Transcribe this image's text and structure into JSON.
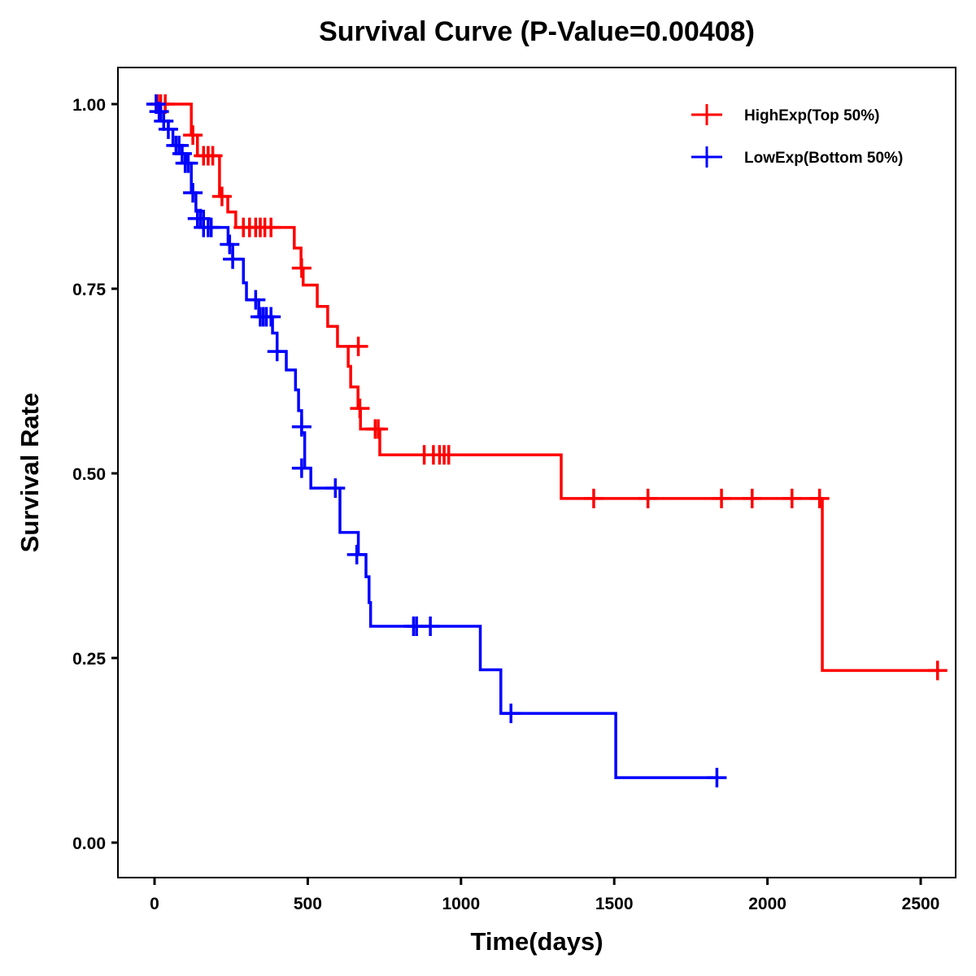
{
  "chart_data": {
    "type": "line",
    "title": "Survival Curve (P-Value=0.00408)",
    "xlabel": "Time(days)",
    "ylabel": "Survival Rate",
    "xlim": [
      -110,
      2630
    ],
    "ylim": [
      -0.05,
      1.05
    ],
    "xticks": [
      0,
      500,
      1000,
      1500,
      2000,
      2500
    ],
    "xtick_labels": [
      "0",
      "500",
      "1000",
      "1500",
      "2000",
      "2500"
    ],
    "yticks": [
      0,
      0.25,
      0.5,
      0.75,
      1.0
    ],
    "ytick_labels": [
      "0.00",
      "0.25",
      "0.50",
      "0.75",
      "1.00"
    ],
    "grid": false,
    "legend_position": "top-right",
    "series": [
      {
        "name": "HighExp(Top 50%)",
        "color": "#ff0000",
        "steps": [
          [
            0,
            1.0
          ],
          [
            120,
            0.958
          ],
          [
            140,
            0.93
          ],
          [
            212,
            0.875
          ],
          [
            239,
            0.854
          ],
          [
            265,
            0.833
          ],
          [
            456,
            0.805
          ],
          [
            478,
            0.778
          ],
          [
            485,
            0.755
          ],
          [
            531,
            0.726
          ],
          [
            565,
            0.699
          ],
          [
            597,
            0.672
          ],
          [
            632,
            0.645
          ],
          [
            640,
            0.617
          ],
          [
            664,
            0.588
          ],
          [
            672,
            0.56
          ],
          [
            735,
            0.525
          ],
          [
            1327,
            0.466
          ],
          [
            2179,
            0.233
          ],
          [
            2560,
            0.233
          ]
        ],
        "censored": [
          [
            10,
            1.0
          ],
          [
            20,
            1.0
          ],
          [
            35,
            1.0
          ],
          [
            125,
            0.958
          ],
          [
            160,
            0.93
          ],
          [
            175,
            0.93
          ],
          [
            190,
            0.93
          ],
          [
            220,
            0.875
          ],
          [
            290,
            0.833
          ],
          [
            310,
            0.833
          ],
          [
            330,
            0.833
          ],
          [
            345,
            0.833
          ],
          [
            360,
            0.833
          ],
          [
            380,
            0.833
          ],
          [
            480,
            0.778
          ],
          [
            665,
            0.672
          ],
          [
            670,
            0.588
          ],
          [
            720,
            0.56
          ],
          [
            730,
            0.56
          ],
          [
            880,
            0.525
          ],
          [
            910,
            0.525
          ],
          [
            930,
            0.525
          ],
          [
            945,
            0.525
          ],
          [
            960,
            0.525
          ],
          [
            1433,
            0.466
          ],
          [
            1610,
            0.466
          ],
          [
            1850,
            0.466
          ],
          [
            1950,
            0.466
          ],
          [
            2080,
            0.466
          ],
          [
            2170,
            0.466
          ],
          [
            2555,
            0.233
          ]
        ]
      },
      {
        "name": "LowExp(Bottom 50%)",
        "color": "#0000ff",
        "steps": [
          [
            0,
            1.0
          ],
          [
            20,
            0.977
          ],
          [
            45,
            0.966
          ],
          [
            60,
            0.944
          ],
          [
            90,
            0.933
          ],
          [
            105,
            0.92
          ],
          [
            120,
            0.88
          ],
          [
            135,
            0.855
          ],
          [
            160,
            0.833
          ],
          [
            240,
            0.81
          ],
          [
            255,
            0.79
          ],
          [
            290,
            0.758
          ],
          [
            300,
            0.735
          ],
          [
            340,
            0.712
          ],
          [
            385,
            0.69
          ],
          [
            400,
            0.665
          ],
          [
            430,
            0.64
          ],
          [
            460,
            0.613
          ],
          [
            470,
            0.585
          ],
          [
            480,
            0.555
          ],
          [
            490,
            0.507
          ],
          [
            510,
            0.48
          ],
          [
            605,
            0.42
          ],
          [
            665,
            0.39
          ],
          [
            690,
            0.36
          ],
          [
            700,
            0.325
          ],
          [
            705,
            0.293
          ],
          [
            1063,
            0.234
          ],
          [
            1130,
            0.175
          ],
          [
            1505,
            0.088
          ],
          [
            1840,
            0.088
          ]
        ],
        "censored": [
          [
            5,
            1.0
          ],
          [
            15,
            0.99
          ],
          [
            30,
            0.977
          ],
          [
            45,
            0.966
          ],
          [
            70,
            0.944
          ],
          [
            80,
            0.944
          ],
          [
            90,
            0.933
          ],
          [
            100,
            0.92
          ],
          [
            110,
            0.92
          ],
          [
            125,
            0.88
          ],
          [
            140,
            0.845
          ],
          [
            150,
            0.845
          ],
          [
            160,
            0.833
          ],
          [
            175,
            0.833
          ],
          [
            185,
            0.833
          ],
          [
            245,
            0.81
          ],
          [
            255,
            0.79
          ],
          [
            330,
            0.735
          ],
          [
            345,
            0.712
          ],
          [
            355,
            0.712
          ],
          [
            365,
            0.712
          ],
          [
            380,
            0.712
          ],
          [
            400,
            0.665
          ],
          [
            480,
            0.563
          ],
          [
            480,
            0.507
          ],
          [
            590,
            0.48
          ],
          [
            660,
            0.39
          ],
          [
            845,
            0.293
          ],
          [
            855,
            0.293
          ],
          [
            900,
            0.293
          ],
          [
            1163,
            0.175
          ],
          [
            1835,
            0.088
          ]
        ]
      }
    ]
  }
}
